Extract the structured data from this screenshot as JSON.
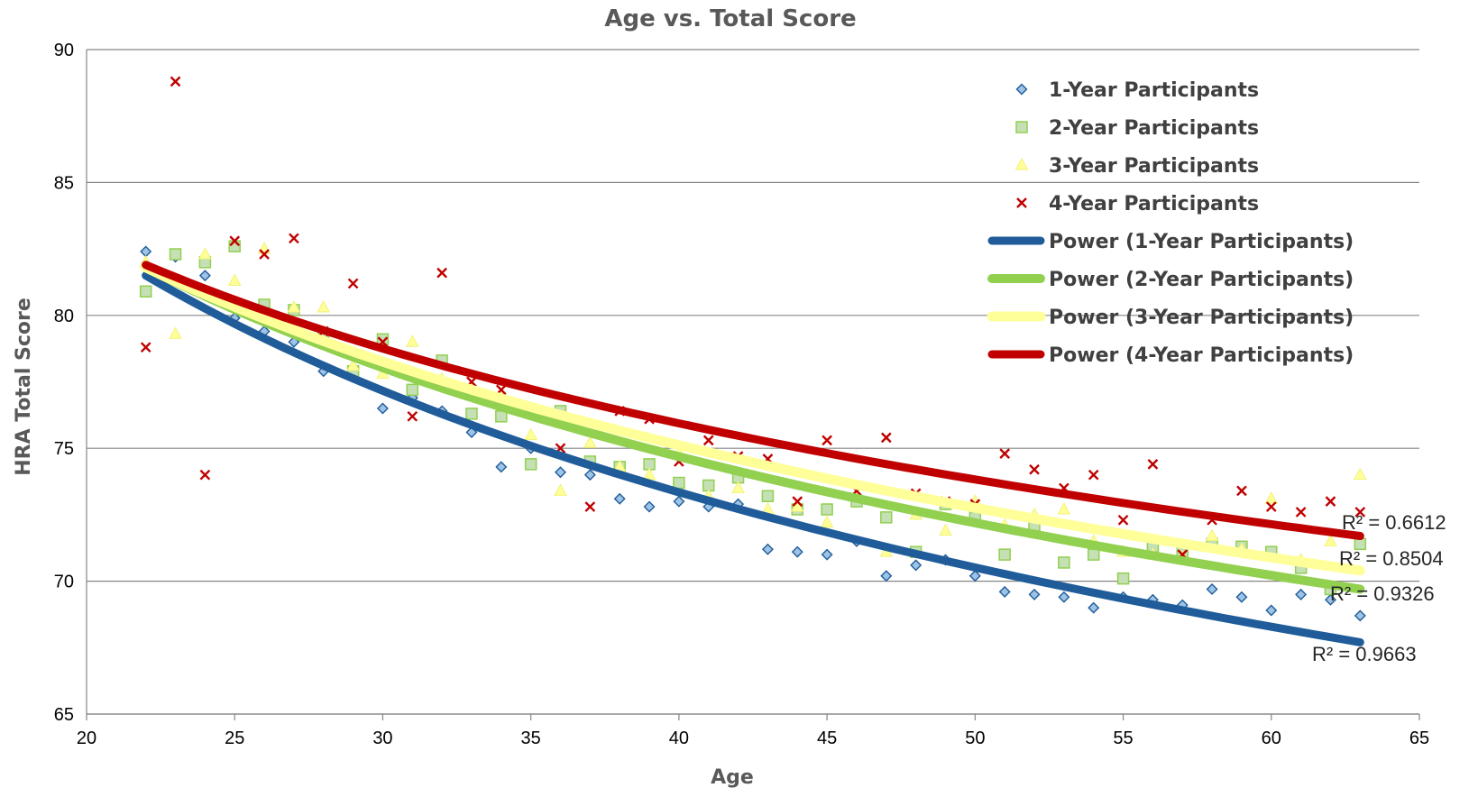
{
  "chart_data": {
    "type": "scatter",
    "title": "Age vs. Total Score",
    "xlabel": "Age",
    "ylabel": "HRA Total Score",
    "xlim": [
      20,
      65
    ],
    "ylim": [
      65,
      90
    ],
    "xticks": [
      20,
      25,
      30,
      35,
      40,
      45,
      50,
      55,
      60,
      65
    ],
    "yticks": [
      65,
      70,
      75,
      80,
      85,
      90
    ],
    "grid": "horizontal",
    "legend_position": "top-right",
    "series": [
      {
        "name": "1-Year Participants",
        "marker": "diamond",
        "color": "#2E75B6",
        "x": [
          22,
          23,
          24,
          25,
          26,
          27,
          28,
          29,
          30,
          31,
          32,
          33,
          34,
          35,
          36,
          37,
          38,
          39,
          40,
          41,
          42,
          43,
          44,
          45,
          46,
          47,
          48,
          49,
          50,
          51,
          52,
          53,
          54,
          55,
          56,
          57,
          58,
          59,
          60,
          61,
          62,
          63
        ],
        "y": [
          82.4,
          82.2,
          81.5,
          79.9,
          79.4,
          79.0,
          77.9,
          78.0,
          76.5,
          76.9,
          76.4,
          75.6,
          74.3,
          75.0,
          74.1,
          74.0,
          73.1,
          72.8,
          73.0,
          72.8,
          72.9,
          71.2,
          71.1,
          71.0,
          71.5,
          70.2,
          70.6,
          70.8,
          70.2,
          69.6,
          69.5,
          69.4,
          69.0,
          69.4,
          69.3,
          69.1,
          69.7,
          69.4,
          68.9,
          69.5,
          69.3,
          68.7
        ]
      },
      {
        "name": "2-Year Participants",
        "marker": "square",
        "color": "#92D050",
        "x": [
          22,
          23,
          24,
          25,
          26,
          27,
          28,
          29,
          30,
          31,
          32,
          33,
          34,
          35,
          36,
          37,
          38,
          39,
          40,
          41,
          42,
          43,
          44,
          45,
          46,
          47,
          48,
          49,
          50,
          51,
          52,
          53,
          54,
          55,
          56,
          57,
          58,
          59,
          60,
          61,
          62,
          63
        ],
        "y": [
          80.9,
          82.3,
          82.0,
          82.6,
          80.4,
          80.2,
          79.2,
          77.9,
          79.1,
          77.2,
          78.3,
          76.3,
          76.2,
          74.4,
          76.4,
          74.5,
          74.3,
          74.4,
          73.7,
          73.6,
          73.9,
          73.2,
          72.7,
          72.7,
          73.0,
          72.4,
          71.1,
          72.9,
          72.4,
          71.0,
          72.1,
          70.7,
          71.0,
          70.1,
          71.3,
          71.1,
          71.4,
          71.3,
          71.1,
          70.5,
          69.7,
          71.4
        ]
      },
      {
        "name": "3-Year Participants",
        "marker": "triangle",
        "color": "#FFFF99",
        "x": [
          22,
          23,
          24,
          25,
          26,
          27,
          28,
          29,
          30,
          31,
          32,
          33,
          34,
          35,
          36,
          37,
          38,
          39,
          40,
          41,
          42,
          43,
          44,
          45,
          46,
          47,
          48,
          49,
          50,
          51,
          52,
          53,
          54,
          55,
          56,
          57,
          58,
          59,
          60,
          61,
          62,
          63
        ],
        "y": [
          82.0,
          79.3,
          82.3,
          81.3,
          82.5,
          80.3,
          80.3,
          78.1,
          77.8,
          79.0,
          77.6,
          77.3,
          77.0,
          75.5,
          73.4,
          75.2,
          74.3,
          74.0,
          74.8,
          73.2,
          73.5,
          72.7,
          72.8,
          72.2,
          73.2,
          71.1,
          72.5,
          71.9,
          73.0,
          72.1,
          72.5,
          72.7,
          71.5,
          71.1,
          71.0,
          70.9,
          71.7,
          71.2,
          73.1,
          70.8,
          71.5,
          74.0
        ]
      },
      {
        "name": "4-Year Participants",
        "marker": "x",
        "color": "#C00000",
        "x": [
          22,
          23,
          24,
          25,
          26,
          27,
          28,
          29,
          30,
          31,
          32,
          33,
          34,
          35,
          36,
          37,
          38,
          39,
          40,
          41,
          42,
          43,
          44,
          45,
          46,
          47,
          48,
          49,
          50,
          51,
          52,
          53,
          54,
          55,
          56,
          57,
          58,
          59,
          60,
          61,
          62,
          63
        ],
        "y": [
          78.8,
          88.8,
          74.0,
          82.8,
          82.3,
          82.9,
          79.4,
          81.2,
          79.0,
          76.2,
          81.6,
          77.5,
          77.2,
          76.5,
          75.0,
          72.8,
          76.4,
          76.1,
          74.5,
          75.3,
          74.7,
          74.6,
          73.0,
          75.3,
          73.4,
          75.4,
          73.3,
          73.0,
          72.9,
          74.8,
          74.2,
          73.5,
          74.0,
          72.3,
          74.4,
          71.0,
          72.3,
          73.4,
          72.8,
          72.6,
          73.0,
          72.6
        ]
      }
    ],
    "trendlines": [
      {
        "name": "Power (1-Year Participants)",
        "type": "power",
        "color": "#1F5C99",
        "x": [
          22,
          63
        ],
        "y": [
          81.5,
          67.7
        ],
        "r_squared": "R² = 0.9663"
      },
      {
        "name": "Power (2-Year Participants)",
        "type": "power",
        "color": "#92D050",
        "x": [
          22,
          63
        ],
        "y": [
          81.8,
          69.7
        ],
        "r_squared": "R² = 0.9326"
      },
      {
        "name": "Power (3-Year Participants)",
        "type": "power",
        "color": "#FFFF99",
        "x": [
          22,
          63
        ],
        "y": [
          81.8,
          70.4
        ],
        "r_squared": "R² = 0.8504"
      },
      {
        "name": "Power (4-Year Participants)",
        "type": "power",
        "color": "#C00000",
        "x": [
          22,
          63
        ],
        "y": [
          81.9,
          71.7
        ],
        "r_squared": "R² = 0.6612"
      }
    ]
  }
}
